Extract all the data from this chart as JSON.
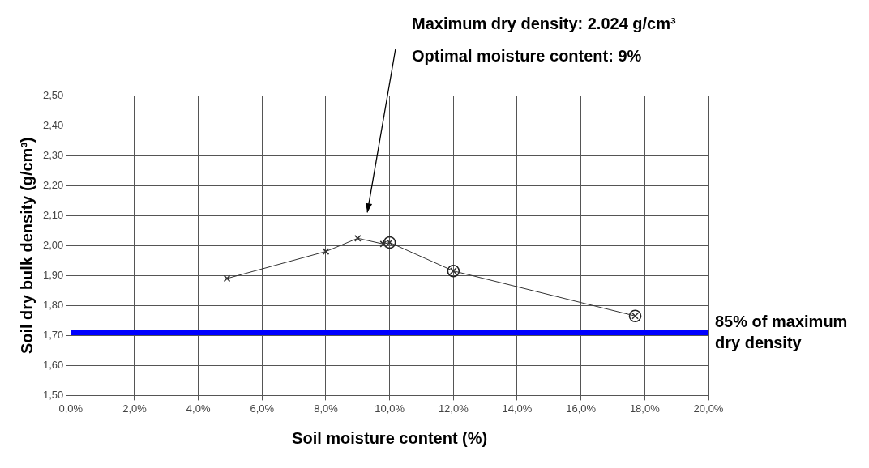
{
  "chart_data": {
    "type": "line",
    "xlabel": "Soil moisture content (%)",
    "ylabel": "Soil dry bulk density (g/cm³)",
    "xlim": [
      0,
      20
    ],
    "xticks": [
      {
        "value": 0,
        "label": "0,0%"
      },
      {
        "value": 2,
        "label": "2,0%"
      },
      {
        "value": 4,
        "label": "4,0%"
      },
      {
        "value": 6,
        "label": "6,0%"
      },
      {
        "value": 8,
        "label": "8,0%"
      },
      {
        "value": 10,
        "label": "10,0%"
      },
      {
        "value": 12,
        "label": "12,0%"
      },
      {
        "value": 14,
        "label": "14,0%"
      },
      {
        "value": 16,
        "label": "16,0%"
      },
      {
        "value": 18,
        "label": "18,0%"
      },
      {
        "value": 20,
        "label": "20,0%"
      }
    ],
    "ylim": [
      1.5,
      2.5
    ],
    "yticks": [
      {
        "value": 1.5,
        "label": "1,50"
      },
      {
        "value": 1.6,
        "label": "1,60"
      },
      {
        "value": 1.7,
        "label": "1,70"
      },
      {
        "value": 1.8,
        "label": "1,80"
      },
      {
        "value": 1.9,
        "label": "1,90"
      },
      {
        "value": 2.0,
        "label": "2,00"
      },
      {
        "value": 2.1,
        "label": "2,10"
      },
      {
        "value": 2.2,
        "label": "2,20"
      },
      {
        "value": 2.3,
        "label": "2,30"
      },
      {
        "value": 2.4,
        "label": "2,40"
      },
      {
        "value": 2.5,
        "label": "2,50"
      }
    ],
    "grid": true,
    "legend": false,
    "series": [
      {
        "color": "#333333",
        "marker": "cross",
        "x": [
          4.9,
          8.0,
          9.0,
          9.8,
          10.0,
          12.0,
          17.7
        ],
        "values": [
          1.89,
          1.98,
          2.024,
          2.005,
          2.01,
          1.915,
          1.765
        ]
      },
      {
        "type": "scatter",
        "color": "#222222",
        "marker": "circle",
        "x": [
          10.0,
          12.0,
          17.7
        ],
        "values": [
          2.01,
          1.915,
          1.765
        ]
      }
    ],
    "ref_lines": [
      {
        "axis": "y",
        "value": 1.71,
        "label": "85% of maximum dry density",
        "color": "#0000ff"
      }
    ],
    "annotations": [
      "Maximum dry density: 2.024 g/cm³",
      "Optimal moisture content: 9%"
    ]
  }
}
